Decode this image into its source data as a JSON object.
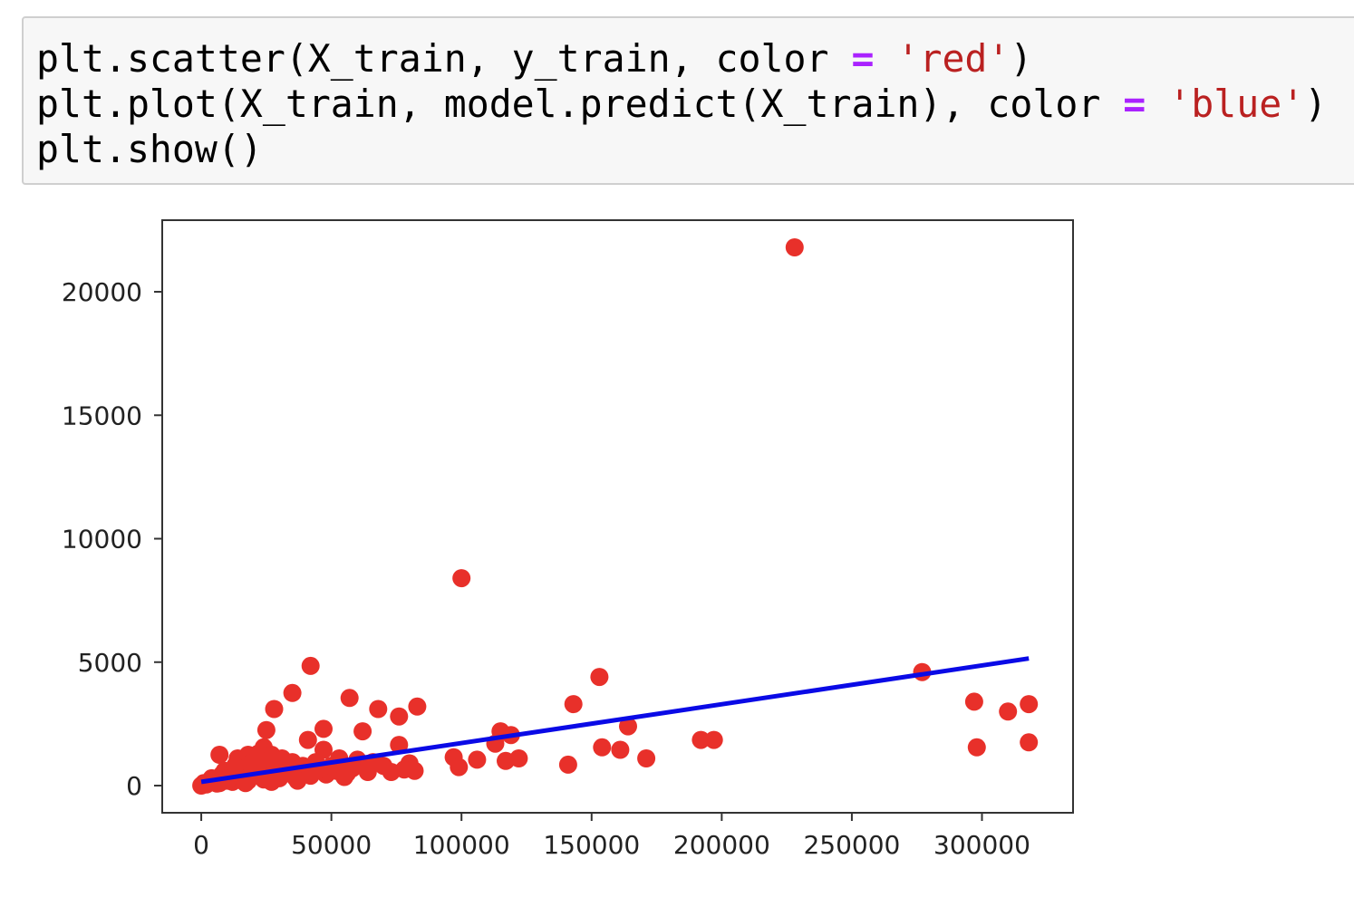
{
  "notebook": {
    "code_cell": {
      "lines": [
        [
          {
            "text": "plt.scatter(X_train, y_train, color ",
            "kind": "plain"
          },
          {
            "text": "=",
            "kind": "op"
          },
          {
            "text": " ",
            "kind": "plain"
          },
          {
            "text": "'red'",
            "kind": "str"
          },
          {
            "text": ")",
            "kind": "plain"
          }
        ],
        [
          {
            "text": "plt.plot(X_train, model.predict(X_train), color ",
            "kind": "plain"
          },
          {
            "text": "=",
            "kind": "op"
          },
          {
            "text": " ",
            "kind": "plain"
          },
          {
            "text": "'blue'",
            "kind": "str"
          },
          {
            "text": ")",
            "kind": "plain"
          }
        ],
        [
          {
            "text": "plt.show()",
            "kind": "plain"
          }
        ]
      ]
    }
  },
  "colors": {
    "cell_background": "#f7f7f7",
    "cell_border": "#cfcfcf",
    "operator": "#aa22ff",
    "string": "#ba2121",
    "scatter": "#e8302a",
    "line": "#0a0ae6",
    "axes": "#333333"
  },
  "chart_data": {
    "type": "scatter",
    "title": "",
    "xlabel": "",
    "ylabel": "",
    "grid": false,
    "xlim": [
      -15000,
      335000
    ],
    "ylim": [
      -1100,
      22900
    ],
    "xticks": [
      0,
      50000,
      100000,
      150000,
      200000,
      250000,
      300000
    ],
    "xtick_labels": [
      "0",
      "50000",
      "100000",
      "150000",
      "200000",
      "250000",
      "300000"
    ],
    "yticks": [
      0,
      5000,
      10000,
      15000,
      20000
    ],
    "ytick_labels": [
      "0",
      "5000",
      "10000",
      "15000",
      "20000"
    ],
    "series": [
      {
        "kind": "scatter",
        "color": "#e8302a",
        "points": [
          [
            228000,
            21800
          ],
          [
            100000,
            8400
          ],
          [
            42000,
            4850
          ],
          [
            35000,
            3750
          ],
          [
            57000,
            3550
          ],
          [
            28000,
            3100
          ],
          [
            68000,
            3100
          ],
          [
            83000,
            3200
          ],
          [
            76000,
            2800
          ],
          [
            153000,
            4400
          ],
          [
            143000,
            3300
          ],
          [
            277000,
            4600
          ],
          [
            297000,
            3400
          ],
          [
            310000,
            3000
          ],
          [
            318000,
            3300
          ],
          [
            318000,
            1750
          ],
          [
            298000,
            1550
          ],
          [
            25000,
            2250
          ],
          [
            47000,
            2300
          ],
          [
            62000,
            2200
          ],
          [
            41000,
            1850
          ],
          [
            115000,
            2200
          ],
          [
            119000,
            2050
          ],
          [
            113000,
            1700
          ],
          [
            164000,
            2400
          ],
          [
            154000,
            1550
          ],
          [
            161000,
            1450
          ],
          [
            171000,
            1100
          ],
          [
            192000,
            1850
          ],
          [
            197000,
            1850
          ],
          [
            141000,
            850
          ],
          [
            122000,
            1100
          ],
          [
            117000,
            1000
          ],
          [
            106000,
            1050
          ],
          [
            97000,
            1150
          ],
          [
            99000,
            750
          ],
          [
            7000,
            1250
          ],
          [
            14000,
            1100
          ],
          [
            18000,
            1250
          ],
          [
            22000,
            1300
          ],
          [
            24000,
            1550
          ],
          [
            27000,
            1250
          ],
          [
            31000,
            1100
          ],
          [
            35000,
            950
          ],
          [
            47000,
            1450
          ],
          [
            53000,
            1100
          ],
          [
            60000,
            1050
          ],
          [
            66000,
            950
          ],
          [
            76000,
            1650
          ],
          [
            80000,
            900
          ],
          [
            78000,
            650
          ],
          [
            73000,
            550
          ],
          [
            64000,
            550
          ],
          [
            56000,
            500
          ],
          [
            48000,
            450
          ],
          [
            42000,
            400
          ],
          [
            36000,
            350
          ],
          [
            30000,
            300
          ],
          [
            24000,
            250
          ],
          [
            18000,
            200
          ],
          [
            12000,
            150
          ],
          [
            6000,
            80
          ],
          [
            0,
            0
          ],
          [
            2000,
            50
          ],
          [
            4000,
            300
          ],
          [
            8000,
            450
          ],
          [
            10000,
            200
          ],
          [
            16000,
            600
          ],
          [
            20000,
            750
          ],
          [
            26000,
            650
          ],
          [
            32000,
            800
          ],
          [
            38000,
            700
          ],
          [
            44000,
            950
          ],
          [
            50000,
            800
          ],
          [
            58000,
            700
          ],
          [
            70000,
            800
          ],
          [
            82000,
            600
          ],
          [
            3000,
            150
          ],
          [
            9000,
            600
          ],
          [
            15000,
            400
          ],
          [
            21000,
            450
          ],
          [
            28000,
            500
          ],
          [
            34000,
            550
          ],
          [
            40000,
            600
          ],
          [
            5000,
            250
          ],
          [
            11000,
            350
          ],
          [
            13000,
            800
          ],
          [
            19000,
            900
          ],
          [
            23000,
            1000
          ],
          [
            29000,
            900
          ],
          [
            33000,
            700
          ],
          [
            39000,
            800
          ],
          [
            45000,
            650
          ],
          [
            52000,
            600
          ],
          [
            1000,
            100
          ],
          [
            7000,
            100
          ],
          [
            17000,
            100
          ],
          [
            27000,
            150
          ],
          [
            37000,
            200
          ],
          [
            55000,
            350
          ]
        ]
      },
      {
        "kind": "line",
        "color": "#0a0ae6",
        "points": [
          [
            0,
            150
          ],
          [
            318000,
            5150
          ]
        ]
      }
    ]
  }
}
